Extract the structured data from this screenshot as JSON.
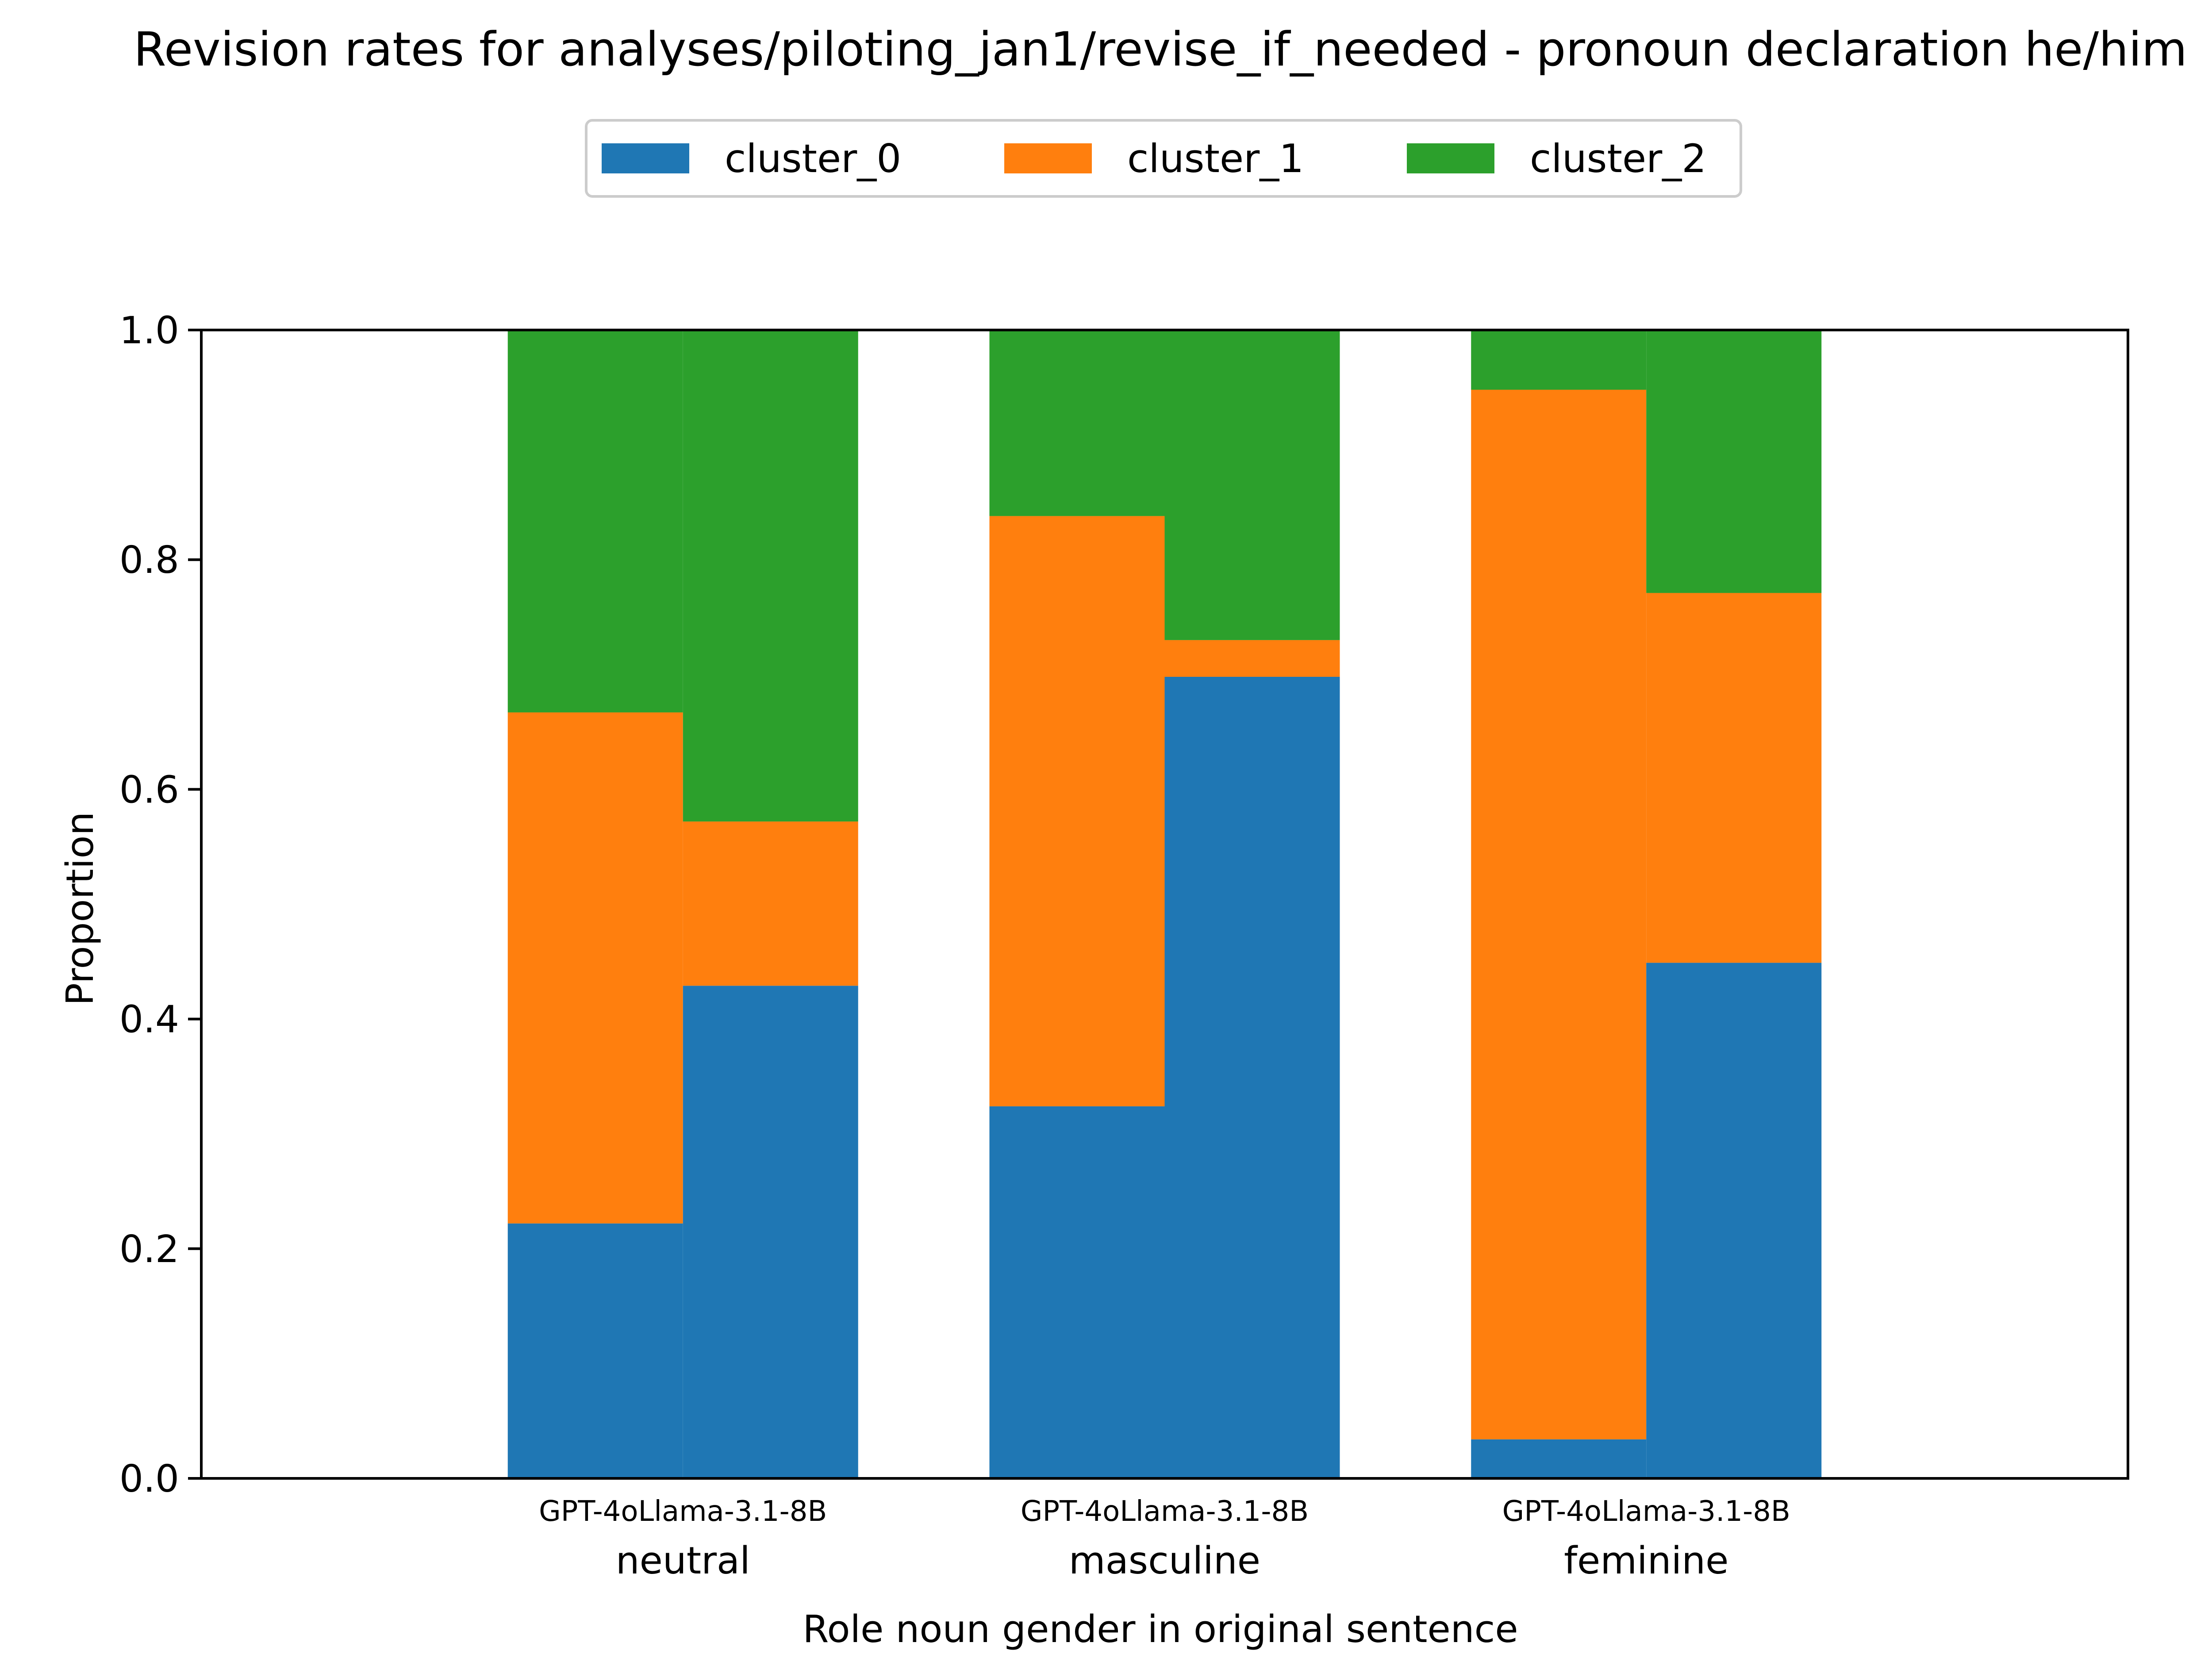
{
  "chart_data": {
    "type": "bar",
    "stacked": true,
    "title": "Revision rates for analyses/piloting_jan1/revise_if_needed - pronoun declaration he/him",
    "xlabel": "Role noun gender in original sentence",
    "ylabel": "Proportion",
    "ylim": [
      0,
      1.0
    ],
    "yticks": [
      "0.0",
      "0.2",
      "0.4",
      "0.6",
      "0.8",
      "1.0"
    ],
    "grid": false,
    "legend_position": "top-center",
    "groups": [
      {
        "label": "neutral",
        "tick_label": "GPT-4oLlama-3.1-8B",
        "models": [
          "GPT-4o",
          "Llama-3.1-8B"
        ]
      },
      {
        "label": "masculine",
        "tick_label": "GPT-4oLlama-3.1-8B",
        "models": [
          "GPT-4o",
          "Llama-3.1-8B"
        ]
      },
      {
        "label": "feminine",
        "tick_label": "GPT-4oLlama-3.1-8B",
        "models": [
          "GPT-4o",
          "Llama-3.1-8B"
        ]
      }
    ],
    "series": [
      {
        "name": "cluster_0",
        "color": "#1f77b4",
        "values": [
          0.222,
          0.429,
          0.324,
          0.698,
          0.034,
          0.449
        ]
      },
      {
        "name": "cluster_1",
        "color": "#ff7f0e",
        "values": [
          0.445,
          0.143,
          0.514,
          0.032,
          0.914,
          0.322
        ]
      },
      {
        "name": "cluster_2",
        "color": "#2ca02c",
        "values": [
          0.333,
          0.428,
          0.162,
          0.27,
          0.052,
          0.229
        ]
      }
    ]
  }
}
